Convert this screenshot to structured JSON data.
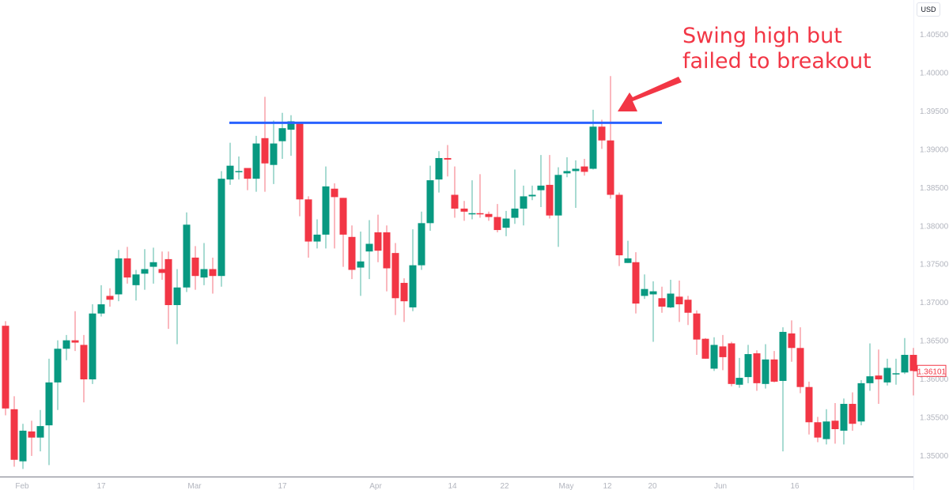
{
  "header": {
    "currency": "USD"
  },
  "annotation": {
    "line1": "Swing high but",
    "line2": "failed to breakout",
    "color": "#f23645"
  },
  "last_price": {
    "value": "1.36101",
    "price": 1.36101,
    "color": "#f23645"
  },
  "colors": {
    "up": "#089981",
    "down": "#f23645",
    "resistance": "#2962ff",
    "axis_text": "#b2b5be"
  },
  "chart_data": {
    "type": "candlestick",
    "title": "",
    "xlabel": "",
    "ylabel": "USD",
    "ylim": [
      1.348,
      1.4075
    ],
    "y_ticks": [
      "1.40500",
      "1.40000",
      "1.39500",
      "1.39000",
      "1.38500",
      "1.38000",
      "1.37500",
      "1.37000",
      "1.36500",
      "1.36000",
      "1.35500",
      "1.35000"
    ],
    "x_ticks": [
      {
        "label": "Feb",
        "x": 28
      },
      {
        "label": "17",
        "x": 128
      },
      {
        "label": "Mar",
        "x": 246
      },
      {
        "label": "17",
        "x": 357
      },
      {
        "label": "Apr",
        "x": 475
      },
      {
        "label": "14",
        "x": 572
      },
      {
        "label": "22",
        "x": 638
      },
      {
        "label": "May",
        "x": 716
      },
      {
        "label": "12",
        "x": 768
      },
      {
        "label": "20",
        "x": 825
      },
      {
        "label": "Jun",
        "x": 911
      },
      {
        "label": "16",
        "x": 1005
      }
    ],
    "resistance_line": {
      "price": 1.3934,
      "x_start": 290,
      "x_end": 837
    },
    "annotation_arrow": {
      "from": [
        858,
        100
      ],
      "to": [
        783,
        140
      ]
    },
    "candles": [
      [
        7,
        1.3669,
        1.3561,
        1.3675,
        1.3552
      ],
      [
        18,
        1.356,
        1.3494,
        1.3577,
        1.3485
      ],
      [
        29,
        1.3492,
        1.3532,
        1.3541,
        1.3482
      ],
      [
        40,
        1.3531,
        1.3523,
        1.3545,
        1.3499
      ],
      [
        51,
        1.3523,
        1.3538,
        1.3559,
        1.3505
      ],
      [
        62,
        1.3539,
        1.3595,
        1.3626,
        1.3487
      ],
      [
        73,
        1.3595,
        1.3639,
        1.365,
        1.3559
      ],
      [
        84,
        1.3639,
        1.365,
        1.3657,
        1.3624
      ],
      [
        95,
        1.365,
        1.3647,
        1.3688,
        1.3636
      ],
      [
        106,
        1.3644,
        1.3599,
        1.3657,
        1.3569
      ],
      [
        117,
        1.3599,
        1.3685,
        1.3697,
        1.3593
      ],
      [
        128,
        1.3685,
        1.3697,
        1.3722,
        1.3681
      ],
      [
        139,
        1.3708,
        1.3703,
        1.3718,
        1.3694
      ],
      [
        150,
        1.371,
        1.3757,
        1.3768,
        1.3701
      ],
      [
        161,
        1.3757,
        1.3732,
        1.3772,
        1.3724
      ],
      [
        172,
        1.3722,
        1.3736,
        1.3742,
        1.3702
      ],
      [
        183,
        1.3737,
        1.3743,
        1.3769,
        1.3716
      ],
      [
        194,
        1.3746,
        1.3752,
        1.3771,
        1.3724
      ],
      [
        205,
        1.3743,
        1.3738,
        1.3766,
        1.3729
      ],
      [
        213,
        1.3756,
        1.3696,
        1.3766,
        1.3665
      ],
      [
        224,
        1.3696,
        1.3719,
        1.3743,
        1.3645
      ],
      [
        236,
        1.3719,
        1.3801,
        1.3817,
        1.3713
      ],
      [
        247,
        1.3758,
        1.3734,
        1.3773,
        1.3716
      ],
      [
        258,
        1.3732,
        1.3743,
        1.3777,
        1.3722
      ],
      [
        269,
        1.3743,
        1.3734,
        1.3758,
        1.3711
      ],
      [
        280,
        1.3734,
        1.3861,
        1.3871,
        1.372
      ],
      [
        291,
        1.386,
        1.3878,
        1.3908,
        1.3853
      ],
      [
        302,
        1.3871,
        1.3871,
        1.389,
        1.386
      ],
      [
        313,
        1.3875,
        1.3861,
        1.3873,
        1.3846
      ],
      [
        324,
        1.3861,
        1.3907,
        1.3917,
        1.3844
      ],
      [
        335,
        1.3914,
        1.3881,
        1.3968,
        1.3844
      ],
      [
        346,
        1.3879,
        1.3907,
        1.3937,
        1.3854
      ],
      [
        357,
        1.391,
        1.3927,
        1.3947,
        1.3887
      ],
      [
        368,
        1.3925,
        1.3936,
        1.3944,
        1.3891
      ],
      [
        379,
        1.3934,
        1.3834,
        1.3934,
        1.3812
      ],
      [
        390,
        1.3834,
        1.3779,
        1.3838,
        1.3758
      ],
      [
        401,
        1.3779,
        1.3788,
        1.3808,
        1.377
      ],
      [
        412,
        1.3788,
        1.3851,
        1.3877,
        1.377
      ],
      [
        423,
        1.3848,
        1.3837,
        1.3855,
        1.377
      ],
      [
        434,
        1.3836,
        1.3788,
        1.3836,
        1.3746
      ],
      [
        445,
        1.3785,
        1.3742,
        1.38,
        1.373
      ],
      [
        456,
        1.3745,
        1.3753,
        1.3792,
        1.3708
      ],
      [
        467,
        1.3766,
        1.3776,
        1.3807,
        1.373
      ],
      [
        478,
        1.3791,
        1.3767,
        1.3814,
        1.3752
      ],
      [
        489,
        1.3791,
        1.3744,
        1.38,
        1.3714
      ],
      [
        500,
        1.3764,
        1.3705,
        1.3777,
        1.3683
      ],
      [
        511,
        1.3725,
        1.3701,
        1.3731,
        1.3674
      ],
      [
        522,
        1.3693,
        1.3748,
        1.3795,
        1.3688
      ],
      [
        533,
        1.3748,
        1.3803,
        1.3818,
        1.3742
      ],
      [
        544,
        1.3803,
        1.3859,
        1.3878,
        1.3793
      ],
      [
        555,
        1.386,
        1.3888,
        1.3897,
        1.3843
      ],
      [
        566,
        1.3888,
        1.3886,
        1.3905,
        1.3864
      ],
      [
        575,
        1.384,
        1.3822,
        1.3877,
        1.381
      ],
      [
        587,
        1.3822,
        1.3818,
        1.3832,
        1.3806
      ],
      [
        597,
        1.3816,
        1.3816,
        1.3859,
        1.3808
      ],
      [
        607,
        1.3816,
        1.3815,
        1.3867,
        1.381
      ],
      [
        618,
        1.3815,
        1.3811,
        1.3818,
        1.3806
      ],
      [
        629,
        1.3811,
        1.3794,
        1.3828,
        1.3791
      ],
      [
        640,
        1.3797,
        1.3809,
        1.3819,
        1.3786
      ],
      [
        651,
        1.381,
        1.3822,
        1.3873,
        1.3802
      ],
      [
        662,
        1.3822,
        1.3838,
        1.3852,
        1.38
      ],
      [
        673,
        1.3838,
        1.384,
        1.3852,
        1.3833
      ],
      [
        684,
        1.3846,
        1.3852,
        1.3892,
        1.3824
      ],
      [
        695,
        1.3853,
        1.3813,
        1.3892,
        1.3809
      ],
      [
        706,
        1.3813,
        1.3866,
        1.3876,
        1.3772
      ],
      [
        717,
        1.3868,
        1.3871,
        1.3889,
        1.3863
      ],
      [
        728,
        1.3871,
        1.3874,
        1.3885,
        1.3823
      ],
      [
        739,
        1.3877,
        1.387,
        1.3887,
        1.3865
      ],
      [
        750,
        1.3874,
        1.3929,
        1.3951,
        1.3873
      ],
      [
        761,
        1.3929,
        1.3911,
        1.3938,
        1.39
      ],
      [
        772,
        1.3911,
        1.384,
        1.3995,
        1.3835
      ],
      [
        783,
        1.384,
        1.3761,
        1.3843,
        1.3747
      ],
      [
        794,
        1.3751,
        1.3757,
        1.378,
        1.3751
      ],
      [
        804,
        1.3752,
        1.3698,
        1.3765,
        1.3685
      ],
      [
        815,
        1.3708,
        1.3717,
        1.3736,
        1.3704
      ],
      [
        826,
        1.371,
        1.3714,
        1.3727,
        1.3648
      ],
      [
        837,
        1.3705,
        1.3694,
        1.372,
        1.3686
      ],
      [
        848,
        1.3693,
        1.3711,
        1.3729,
        1.3692
      ],
      [
        859,
        1.3707,
        1.3697,
        1.3728,
        1.3674
      ],
      [
        870,
        1.3703,
        1.3686,
        1.3708,
        1.367
      ],
      [
        881,
        1.3685,
        1.3651,
        1.3689,
        1.3631
      ],
      [
        892,
        1.3652,
        1.3626,
        1.3653,
        1.3626
      ],
      [
        903,
        1.3613,
        1.3644,
        1.3654,
        1.361
      ],
      [
        914,
        1.3642,
        1.3628,
        1.3657,
        1.3611
      ],
      [
        925,
        1.3646,
        1.3593,
        1.3648,
        1.359
      ],
      [
        935,
        1.3592,
        1.3601,
        1.3627,
        1.3588
      ],
      [
        946,
        1.3602,
        1.3632,
        1.3644,
        1.3594
      ],
      [
        957,
        1.3633,
        1.3594,
        1.3637,
        1.3584
      ],
      [
        968,
        1.3593,
        1.3625,
        1.3645,
        1.3587
      ],
      [
        979,
        1.3625,
        1.3596,
        1.3636,
        1.3595
      ],
      [
        990,
        1.3597,
        1.3661,
        1.3667,
        1.3505
      ],
      [
        1001,
        1.3659,
        1.364,
        1.3676,
        1.3622
      ],
      [
        1012,
        1.364,
        1.3589,
        1.3667,
        1.3581
      ],
      [
        1023,
        1.3589,
        1.3543,
        1.3596,
        1.3527
      ],
      [
        1034,
        1.3543,
        1.3523,
        1.355,
        1.3517
      ],
      [
        1045,
        1.3521,
        1.3544,
        1.356,
        1.3514
      ],
      [
        1056,
        1.3545,
        1.3534,
        1.3568,
        1.3515
      ],
      [
        1067,
        1.3532,
        1.3567,
        1.3574,
        1.3514
      ],
      [
        1078,
        1.3567,
        1.3541,
        1.3582,
        1.3532
      ],
      [
        1089,
        1.3544,
        1.3594,
        1.3598,
        1.3539
      ],
      [
        1100,
        1.3594,
        1.3603,
        1.3646,
        1.3584
      ],
      [
        1111,
        1.3604,
        1.3599,
        1.3638,
        1.3567
      ],
      [
        1122,
        1.3595,
        1.3614,
        1.3626,
        1.3591
      ],
      [
        1133,
        1.3606,
        1.3607,
        1.3626,
        1.3592
      ],
      [
        1144,
        1.3608,
        1.3631,
        1.3653,
        1.3606
      ],
      [
        1155,
        1.3631,
        1.361,
        1.364,
        1.3578
      ]
    ]
  }
}
